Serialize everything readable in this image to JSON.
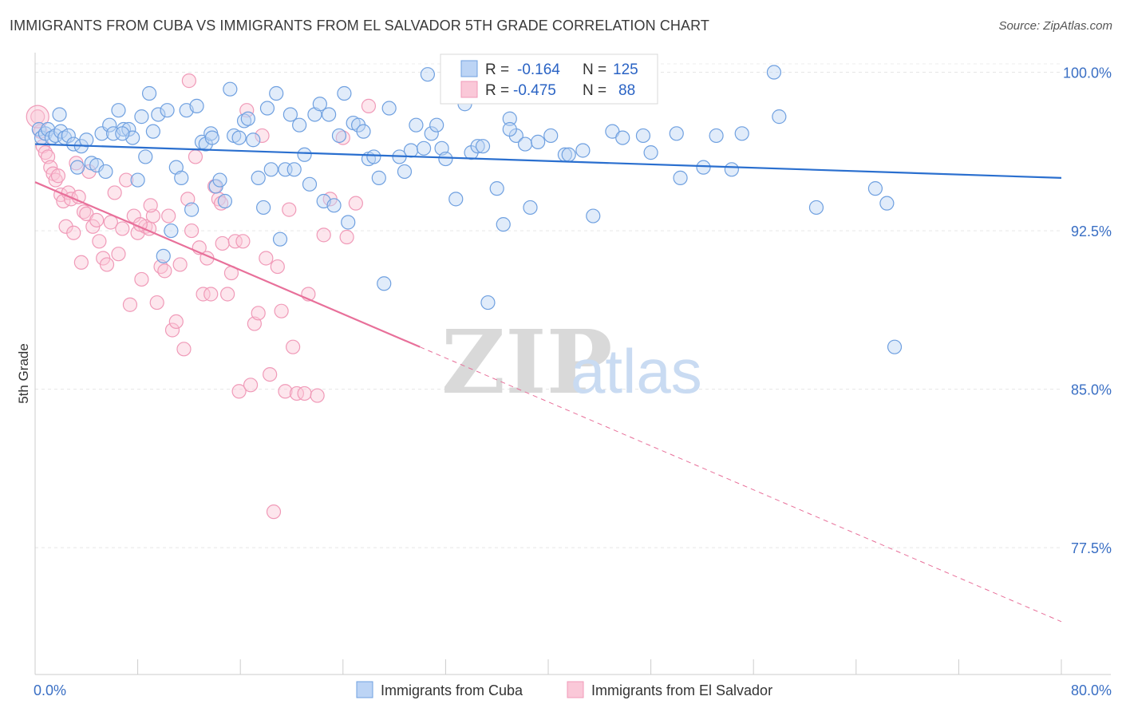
{
  "header": {
    "title": "IMMIGRANTS FROM CUBA VS IMMIGRANTS FROM EL SALVADOR 5TH GRADE CORRELATION CHART",
    "source": "Source: ZipAtlas.com"
  },
  "watermark": {
    "zip": "ZIP",
    "atlas": "atlas"
  },
  "legend": {
    "r_label": "R =",
    "n_label": "N =",
    "items": [
      {
        "name": "Immigrants from Cuba",
        "r": "-0.164",
        "n": "125",
        "color": "#6fa0e0"
      },
      {
        "name": "Immigrants from El Salvador",
        "r": "-0.475",
        "n": "88",
        "color": "#f09ab8"
      }
    ]
  },
  "chart_data": {
    "type": "scatter",
    "title": "IMMIGRANTS FROM CUBA VS IMMIGRANTS FROM EL SALVADOR 5TH GRADE CORRELATION CHART",
    "ylabel": "5th Grade",
    "xlabel": "",
    "x_tick_labels": [
      "0.0%",
      "80.0%"
    ],
    "y_tick_labels": [
      "100.0%",
      "92.5%",
      "85.0%",
      "77.5%"
    ],
    "y_ticks": [
      100.0,
      92.5,
      85.0,
      77.5
    ],
    "xlim": [
      0,
      80
    ],
    "ylim": [
      71.5,
      100.7
    ],
    "grid": true,
    "series": [
      {
        "name": "Immigrants from Cuba",
        "color": "#6fa0e0",
        "trend": {
          "x": [
            0,
            80
          ],
          "y": [
            96.6,
            95.0
          ],
          "dashed_beyond": null
        },
        "points": [
          [
            0.3,
            97.3
          ],
          [
            0.5,
            96.9
          ],
          [
            0.8,
            97.1
          ],
          [
            1.0,
            97.3
          ],
          [
            1.3,
            96.9
          ],
          [
            1.6,
            97.0
          ],
          [
            2.0,
            97.2
          ],
          [
            2.3,
            96.9
          ],
          [
            2.6,
            97.0
          ],
          [
            3.0,
            96.6
          ],
          [
            3.3,
            95.5
          ],
          [
            3.6,
            96.5
          ],
          [
            4.0,
            96.8
          ],
          [
            4.4,
            95.7
          ],
          [
            4.8,
            95.6
          ],
          [
            5.2,
            97.1
          ],
          [
            5.5,
            95.3
          ],
          [
            5.8,
            97.5
          ],
          [
            6.1,
            97.1
          ],
          [
            6.5,
            98.2
          ],
          [
            6.9,
            97.3
          ],
          [
            7.3,
            97.3
          ],
          [
            7.6,
            96.9
          ],
          [
            8.0,
            94.9
          ],
          [
            8.3,
            97.9
          ],
          [
            8.6,
            96.0
          ],
          [
            8.9,
            99.0
          ],
          [
            9.2,
            97.2
          ],
          [
            9.6,
            98.0
          ],
          [
            10.0,
            91.3
          ],
          [
            10.3,
            98.2
          ],
          [
            10.6,
            92.5
          ],
          [
            11.0,
            95.5
          ],
          [
            11.4,
            95.0
          ],
          [
            11.8,
            98.2
          ],
          [
            12.2,
            93.5
          ],
          [
            12.6,
            98.4
          ],
          [
            13.0,
            96.7
          ],
          [
            13.3,
            96.6
          ],
          [
            13.7,
            97.1
          ],
          [
            14.1,
            94.6
          ],
          [
            14.4,
            94.9
          ],
          [
            14.8,
            93.9
          ],
          [
            15.2,
            99.2
          ],
          [
            15.5,
            97.0
          ],
          [
            15.9,
            96.9
          ],
          [
            16.3,
            97.7
          ],
          [
            16.6,
            97.8
          ],
          [
            17.0,
            96.8
          ],
          [
            17.4,
            95.0
          ],
          [
            17.8,
            93.6
          ],
          [
            18.1,
            98.3
          ],
          [
            18.4,
            95.4
          ],
          [
            18.8,
            99.0
          ],
          [
            19.1,
            92.1
          ],
          [
            19.5,
            95.4
          ],
          [
            19.9,
            98.0
          ],
          [
            20.2,
            95.4
          ],
          [
            20.6,
            97.5
          ],
          [
            21.0,
            96.1
          ],
          [
            21.4,
            94.7
          ],
          [
            21.8,
            98.0
          ],
          [
            22.2,
            98.5
          ],
          [
            22.5,
            93.9
          ],
          [
            22.9,
            98.0
          ],
          [
            23.3,
            93.7
          ],
          [
            23.7,
            97.0
          ],
          [
            24.1,
            99.0
          ],
          [
            24.4,
            92.9
          ],
          [
            24.8,
            97.6
          ],
          [
            25.2,
            97.5
          ],
          [
            25.6,
            97.2
          ],
          [
            26.0,
            95.9
          ],
          [
            26.4,
            96.0
          ],
          [
            26.8,
            95.0
          ],
          [
            27.2,
            90.0
          ],
          [
            27.6,
            98.3
          ],
          [
            28.4,
            96.0
          ],
          [
            28.8,
            95.3
          ],
          [
            29.3,
            96.3
          ],
          [
            29.7,
            97.5
          ],
          [
            30.3,
            96.4
          ],
          [
            30.6,
            99.9
          ],
          [
            30.9,
            97.1
          ],
          [
            31.3,
            97.5
          ],
          [
            31.7,
            96.4
          ],
          [
            32.0,
            95.9
          ],
          [
            32.8,
            94.0
          ],
          [
            33.5,
            98.5
          ],
          [
            34.0,
            96.2
          ],
          [
            34.5,
            96.5
          ],
          [
            34.9,
            96.5
          ],
          [
            35.3,
            89.1
          ],
          [
            36.0,
            94.5
          ],
          [
            36.5,
            92.8
          ],
          [
            37.0,
            97.8
          ],
          [
            37.5,
            97.0
          ],
          [
            38.2,
            96.6
          ],
          [
            38.6,
            93.6
          ],
          [
            39.2,
            96.7
          ],
          [
            40.2,
            97.0
          ],
          [
            41.3,
            96.1
          ],
          [
            41.6,
            96.1
          ],
          [
            42.7,
            96.3
          ],
          [
            43.5,
            93.2
          ],
          [
            45.0,
            97.2
          ],
          [
            45.8,
            96.9
          ],
          [
            47.4,
            97.0
          ],
          [
            48.0,
            96.2
          ],
          [
            50.0,
            97.1
          ],
          [
            50.3,
            95.0
          ],
          [
            52.1,
            95.5
          ],
          [
            53.1,
            97.0
          ],
          [
            54.3,
            95.4
          ],
          [
            55.1,
            97.1
          ],
          [
            57.6,
            100.0
          ],
          [
            58.0,
            97.9
          ],
          [
            60.9,
            93.6
          ],
          [
            65.5,
            94.5
          ],
          [
            66.4,
            93.8
          ],
          [
            67.0,
            87.0
          ],
          [
            1.9,
            98.0
          ],
          [
            6.8,
            97.1
          ],
          [
            13.8,
            96.9
          ],
          [
            37.0,
            97.3
          ]
        ]
      },
      {
        "name": "Immigrants from El Salvador",
        "color": "#f09ab8",
        "trend": {
          "x": [
            0,
            30
          ],
          "y": [
            94.8,
            87.0
          ],
          "dashed_to": [
            80,
            74.0
          ]
        },
        "points": [
          [
            0.2,
            97.9
          ],
          [
            0.4,
            97.2
          ],
          [
            0.6,
            96.5
          ],
          [
            0.8,
            96.2
          ],
          [
            1.0,
            96.0
          ],
          [
            1.2,
            95.5
          ],
          [
            1.4,
            95.2
          ],
          [
            1.6,
            94.9
          ],
          [
            1.8,
            95.1
          ],
          [
            2.0,
            94.2
          ],
          [
            2.2,
            93.9
          ],
          [
            2.4,
            92.7
          ],
          [
            2.6,
            94.3
          ],
          [
            2.8,
            94.0
          ],
          [
            3.0,
            92.4
          ],
          [
            3.2,
            95.7
          ],
          [
            3.4,
            94.1
          ],
          [
            3.6,
            91.0
          ],
          [
            3.8,
            93.4
          ],
          [
            4.0,
            93.3
          ],
          [
            4.2,
            95.3
          ],
          [
            4.5,
            92.7
          ],
          [
            4.8,
            93.0
          ],
          [
            5.0,
            92.0
          ],
          [
            5.3,
            91.2
          ],
          [
            5.6,
            90.9
          ],
          [
            5.9,
            92.9
          ],
          [
            6.2,
            94.3
          ],
          [
            6.5,
            91.4
          ],
          [
            6.8,
            92.6
          ],
          [
            7.1,
            94.9
          ],
          [
            7.4,
            89.0
          ],
          [
            7.7,
            93.2
          ],
          [
            8.0,
            92.4
          ],
          [
            8.3,
            90.2
          ],
          [
            8.6,
            92.7
          ],
          [
            8.9,
            92.6
          ],
          [
            9.2,
            93.2
          ],
          [
            9.5,
            89.1
          ],
          [
            9.8,
            90.8
          ],
          [
            10.1,
            90.6
          ],
          [
            10.4,
            93.2
          ],
          [
            10.7,
            87.8
          ],
          [
            11.0,
            88.2
          ],
          [
            11.3,
            90.9
          ],
          [
            11.6,
            86.9
          ],
          [
            11.9,
            94.0
          ],
          [
            12.2,
            92.5
          ],
          [
            12.5,
            96.0
          ],
          [
            12.8,
            91.7
          ],
          [
            13.1,
            89.5
          ],
          [
            13.4,
            91.2
          ],
          [
            13.7,
            89.5
          ],
          [
            14.0,
            94.6
          ],
          [
            14.3,
            94.0
          ],
          [
            14.6,
            91.9
          ],
          [
            15.0,
            89.5
          ],
          [
            15.3,
            90.5
          ],
          [
            15.6,
            92.0
          ],
          [
            15.9,
            84.9
          ],
          [
            16.2,
            92.0
          ],
          [
            16.5,
            98.2
          ],
          [
            16.8,
            85.2
          ],
          [
            17.1,
            88.1
          ],
          [
            17.4,
            88.6
          ],
          [
            17.7,
            97.0
          ],
          [
            18.0,
            91.2
          ],
          [
            18.3,
            85.7
          ],
          [
            18.6,
            79.2
          ],
          [
            18.9,
            90.8
          ],
          [
            19.2,
            88.7
          ],
          [
            19.5,
            84.9
          ],
          [
            19.8,
            93.5
          ],
          [
            20.1,
            87.0
          ],
          [
            20.4,
            84.8
          ],
          [
            21.0,
            84.8
          ],
          [
            21.3,
            89.5
          ],
          [
            22.0,
            84.7
          ],
          [
            22.5,
            92.3
          ],
          [
            23.0,
            94.0
          ],
          [
            24.0,
            96.9
          ],
          [
            24.3,
            92.2
          ],
          [
            25.0,
            93.8
          ],
          [
            26.0,
            98.4
          ],
          [
            9.0,
            93.7
          ],
          [
            12.0,
            99.6
          ],
          [
            14.5,
            93.8
          ],
          [
            8.2,
            92.8
          ]
        ]
      }
    ]
  }
}
